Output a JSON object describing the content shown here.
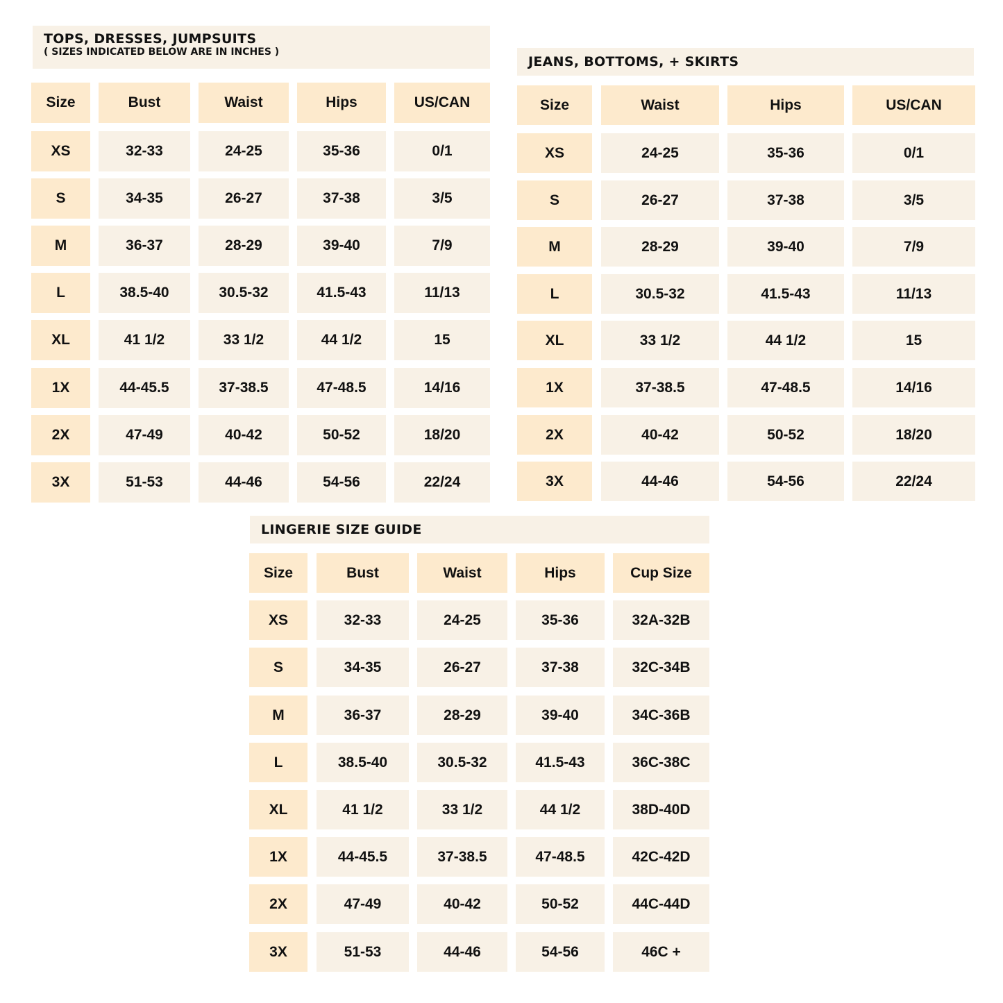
{
  "tables": [
    {
      "title": "TOPS, DRESSES, JUMPSUITS",
      "subtitle": "( SIZES INDICATED BELOW ARE IN INCHES )",
      "columns": [
        "Size",
        "Bust",
        "Waist",
        "Hips",
        "US/CAN"
      ],
      "rows": [
        [
          "XS",
          "32-33",
          "24-25",
          "35-36",
          "0/1"
        ],
        [
          "S",
          "34-35",
          "26-27",
          "37-38",
          "3/5"
        ],
        [
          "M",
          "36-37",
          "28-29",
          "39-40",
          "7/9"
        ],
        [
          "L",
          "38.5-40",
          "30.5-32",
          "41.5-43",
          "11/13"
        ],
        [
          "XL",
          "41 1/2",
          "33 1/2",
          "44 1/2",
          "15"
        ],
        [
          "1X",
          "44-45.5",
          "37-38.5",
          "47-48.5",
          "14/16"
        ],
        [
          "2X",
          "47-49",
          "40-42",
          "50-52",
          "18/20"
        ],
        [
          "3X",
          "51-53",
          "44-46",
          "54-56",
          "22/24"
        ]
      ]
    },
    {
      "title": "JEANS, BOTTOMS, + SKIRTS",
      "columns": [
        "Size",
        "Waist",
        "Hips",
        "US/CAN"
      ],
      "rows": [
        [
          "XS",
          "24-25",
          "35-36",
          "0/1"
        ],
        [
          "S",
          "26-27",
          "37-38",
          "3/5"
        ],
        [
          "M",
          "28-29",
          "39-40",
          "7/9"
        ],
        [
          "L",
          "30.5-32",
          "41.5-43",
          "11/13"
        ],
        [
          "XL",
          "33 1/2",
          "44 1/2",
          "15"
        ],
        [
          "1X",
          "37-38.5",
          "47-48.5",
          "14/16"
        ],
        [
          "2X",
          "40-42",
          "50-52",
          "18/20"
        ],
        [
          "3X",
          "44-46",
          "54-56",
          "22/24"
        ]
      ]
    },
    {
      "title": "LINGERIE SIZE GUIDE",
      "columns": [
        "Size",
        "Bust",
        "Waist",
        "Hips",
        "Cup Size"
      ],
      "rows": [
        [
          "XS",
          "32-33",
          "24-25",
          "35-36",
          "32A-32B"
        ],
        [
          "S",
          "34-35",
          "26-27",
          "37-38",
          "32C-34B"
        ],
        [
          "M",
          "36-37",
          "28-29",
          "39-40",
          "34C-36B"
        ],
        [
          "L",
          "38.5-40",
          "30.5-32",
          "41.5-43",
          "36C-38C"
        ],
        [
          "XL",
          "41 1/2",
          "33 1/2",
          "44 1/2",
          "38D-40D"
        ],
        [
          "1X",
          "44-45.5",
          "37-38.5",
          "47-48.5",
          "42C-42D"
        ],
        [
          "2X",
          "47-49",
          "40-42",
          "50-52",
          "44C-44D"
        ],
        [
          "3X",
          "51-53",
          "44-46",
          "54-56",
          "46C +"
        ]
      ]
    }
  ],
  "colors": {
    "header_cell": "#fdeacd",
    "body_cell": "#f8f1e6",
    "text": "#111111"
  }
}
